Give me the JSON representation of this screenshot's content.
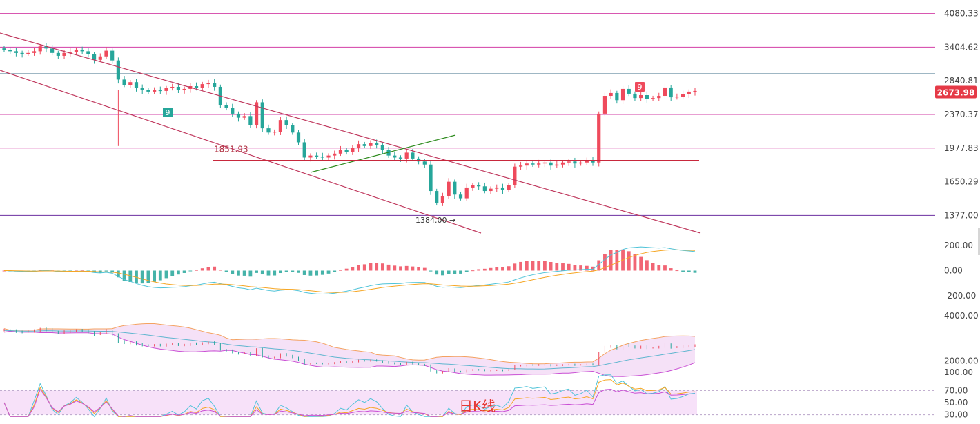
{
  "colors": {
    "up": "#ef4a5c",
    "down": "#26a69a",
    "magenta_line": "#d23fa6",
    "blue_line": "#3f6f8a",
    "channel": "#c0395e",
    "trendline": "#2e8b1e",
    "horizontal_red": "#c8283c",
    "macd_dif": "#f5a623",
    "macd_dea": "#4fc3d8",
    "boll_upper": "#f4a261",
    "boll_fill": "#f3d9f5",
    "rsi_fill": "#f3d4f7",
    "grid_label": "#444444",
    "price_badge": "#e53946"
  },
  "chart_data": [
    {
      "type": "candlestick",
      "panel": "price",
      "y_ticks": [
        "4080.33",
        "3404.62",
        "2840.81",
        "2370.37",
        "1977.83",
        "1650.29",
        "1377.00"
      ],
      "ylim": [
        1290,
        4260
      ],
      "y_scale": "log",
      "horizontal_levels": [
        {
          "value": 4080.33,
          "color": "magenta"
        },
        {
          "value": 3404.62,
          "color": "magenta"
        },
        {
          "value": 2950,
          "color": "blue"
        },
        {
          "value": 2673.98,
          "color": "blue"
        },
        {
          "value": 2370.37,
          "color": "magenta"
        },
        {
          "value": 1977.83,
          "color": "magenta"
        },
        {
          "value": 1377.0,
          "color": "purple"
        }
      ],
      "last_price": "2673.98",
      "annotations": {
        "high_marker": "1851.93",
        "low_marker": "1384.00",
        "seq_down": "9",
        "seq_up": "9"
      },
      "approx_closes": [
        3350,
        3330,
        3300,
        3290,
        3300,
        3330,
        3420,
        3380,
        3300,
        3250,
        3300,
        3320,
        3360,
        3330,
        3280,
        3180,
        3240,
        3340,
        3170,
        2860,
        2780,
        2820,
        2730,
        2700,
        2680,
        2700,
        2690,
        2730,
        2750,
        2700,
        2720,
        2760,
        2730,
        2790,
        2810,
        2750,
        2490,
        2460,
        2380,
        2330,
        2350,
        2240,
        2530,
        2200,
        2150,
        2160,
        2300,
        2240,
        2150,
        2040,
        1880,
        1900,
        1890,
        1880,
        1900,
        1920,
        1960,
        1940,
        1980,
        2020,
        2000,
        2030,
        2010,
        1960,
        1900,
        1880,
        1870,
        1930,
        1870,
        1840,
        1810,
        1570,
        1470,
        1530,
        1650,
        1540,
        1510,
        1600,
        1620,
        1610,
        1570,
        1590,
        1600,
        1580,
        1620,
        1790,
        1800,
        1820,
        1810,
        1820,
        1830,
        1800,
        1810,
        1830,
        1840,
        1820,
        1830,
        1850,
        1830,
        2380,
        2620,
        2660,
        2560,
        2720,
        2650,
        2590,
        2630,
        2580,
        2590,
        2620,
        2740,
        2600,
        2610,
        2640,
        2680,
        2690
      ]
    },
    {
      "type": "bar",
      "panel": "macd",
      "y_ticks": [
        "200.00",
        "0.00",
        "-200.00"
      ],
      "ylim": [
        -260,
        260
      ],
      "series": []
    },
    {
      "type": "area",
      "panel": "boll",
      "y_ticks": [
        "4000.00",
        "2000.00"
      ],
      "ylim": [
        1500,
        4300
      ],
      "series": []
    },
    {
      "type": "line",
      "panel": "rsi",
      "y_ticks": [
        "100.00",
        "70.00",
        "50.00",
        "30.00"
      ],
      "ylim": [
        25,
        100
      ],
      "series": []
    }
  ],
  "watermark": "日K线"
}
